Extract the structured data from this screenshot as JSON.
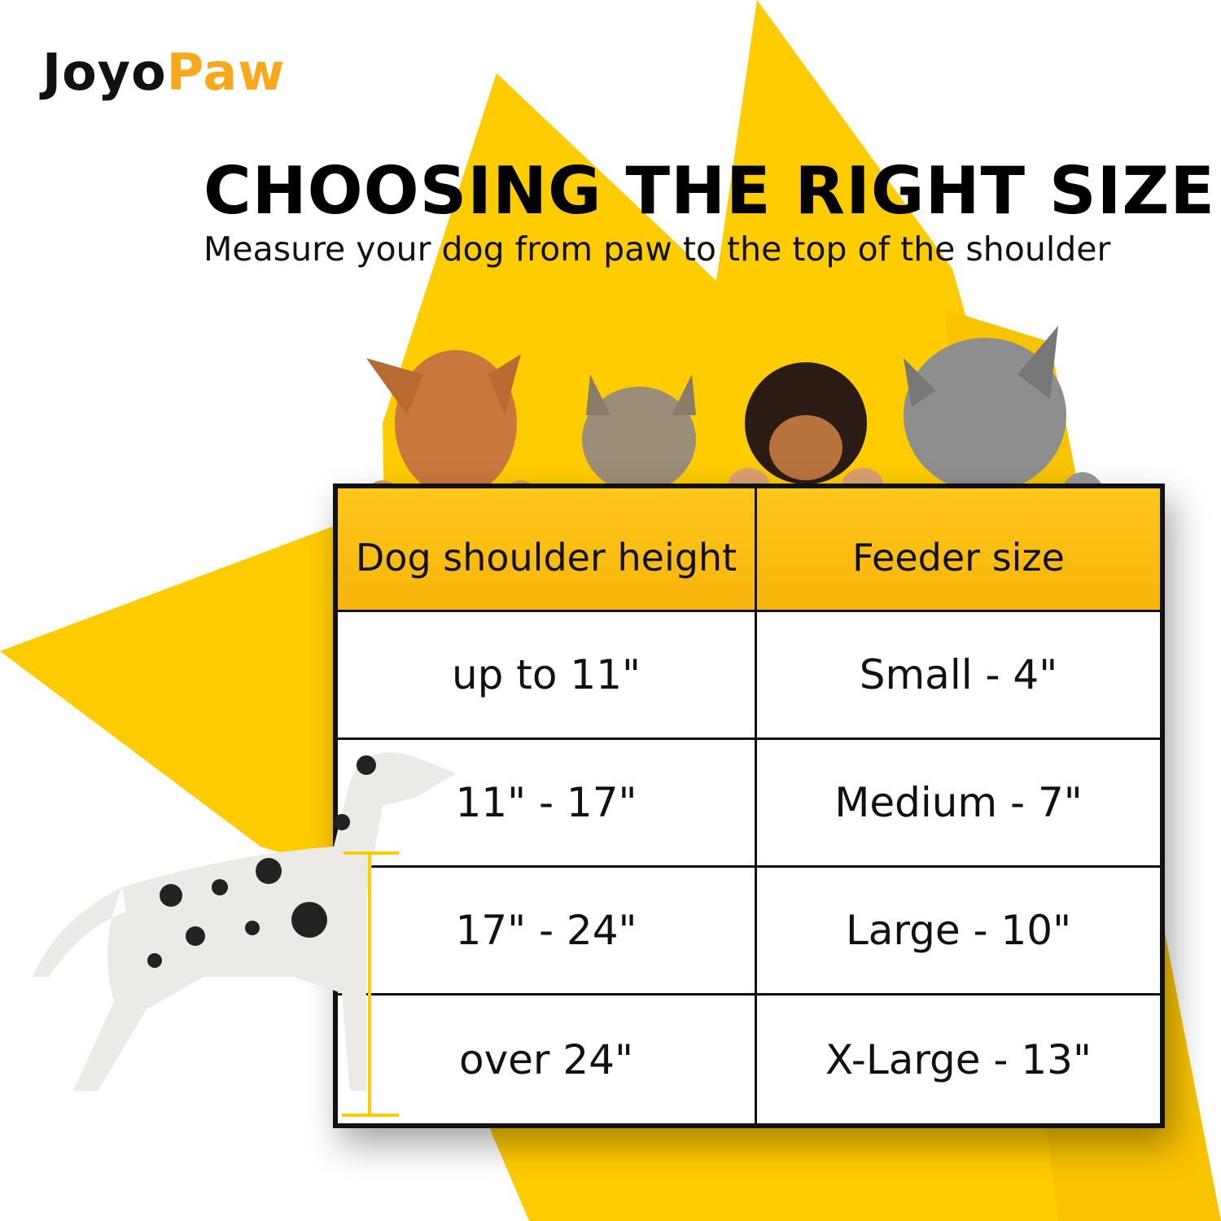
{
  "brand": {
    "logo_part1": "Joyo",
    "logo_part2": "Paw"
  },
  "heading": {
    "title": "CHOOSING THE RIGHT SIZE",
    "subtitle": "Measure your dog from paw to the top of the shoulder"
  },
  "table": {
    "headers": [
      "Dog shoulder height",
      "Feeder size"
    ],
    "rows": [
      [
        "up to 11\"",
        "Small - 4\""
      ],
      [
        "11\" - 17\"",
        "Medium - 7\""
      ],
      [
        "17\" - 24\"",
        "Large - 10\""
      ],
      [
        "over 24\"",
        "X-Large - 13\""
      ]
    ]
  },
  "colors": {
    "accent": "#FFCC00",
    "header": "#FCC014",
    "logo_orange": "#F7A81B"
  }
}
